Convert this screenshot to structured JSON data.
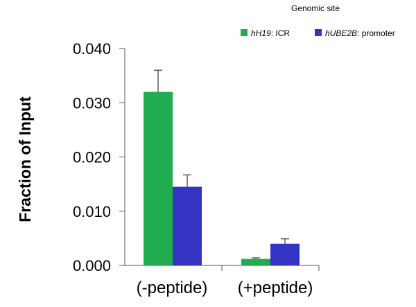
{
  "chart_data": {
    "type": "bar",
    "title": "",
    "xlabel": "",
    "ylabel": "Fraction of  Input",
    "ylim": [
      0,
      0.04
    ],
    "yticks": [
      "0.000",
      "0.010",
      "0.020",
      "0.030",
      "0.040"
    ],
    "ytick_values": [
      0,
      0.01,
      0.02,
      0.03,
      0.04
    ],
    "categories": [
      "(-peptide)",
      "(+peptide)"
    ],
    "legend": {
      "title": "Genomic site",
      "placement": "top-right"
    },
    "series": [
      {
        "name_italic": "hH19",
        "name_suffix": ": ICR",
        "color": "#1fad4f",
        "values": [
          0.032,
          0.0012
        ],
        "errors": [
          0.004,
          0.0002
        ]
      },
      {
        "name_italic": "hUBE2B",
        "name_suffix": ": promoter",
        "color": "#3333c4",
        "values": [
          0.0145,
          0.004
        ],
        "errors": [
          0.0022,
          0.0009
        ]
      }
    ],
    "grid": false
  }
}
